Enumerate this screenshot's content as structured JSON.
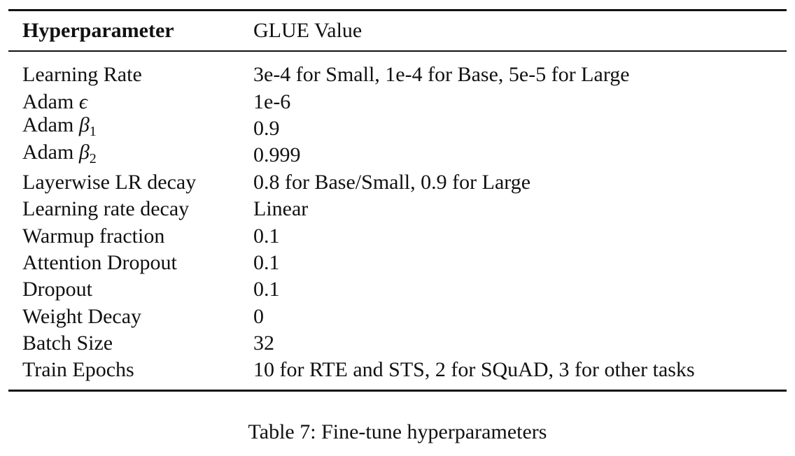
{
  "table": {
    "headers": [
      "Hyperparameter",
      "GLUE Value"
    ],
    "rows": [
      {
        "param": "Learning Rate",
        "value": "3e-4 for Small, 1e-4 for Base, 5e-5 for Large"
      },
      {
        "param_prefix": "Adam ",
        "param_symbol": "ϵ",
        "param_sub": "",
        "value": "1e-6"
      },
      {
        "param_prefix": "Adam ",
        "param_symbol": "β",
        "param_sub": "1",
        "value": "0.9"
      },
      {
        "param_prefix": "Adam ",
        "param_symbol": "β",
        "param_sub": "2",
        "value": "0.999"
      },
      {
        "param": "Layerwise LR decay",
        "value": "0.8 for Base/Small, 0.9 for Large"
      },
      {
        "param": "Learning rate decay",
        "value": "Linear"
      },
      {
        "param": "Warmup fraction",
        "value": "0.1"
      },
      {
        "param": "Attention Dropout",
        "value": "0.1"
      },
      {
        "param": "Dropout",
        "value": "0.1"
      },
      {
        "param": "Weight Decay",
        "value": "0"
      },
      {
        "param": "Batch Size",
        "value": "32"
      },
      {
        "param": "Train Epochs",
        "value": "10 for RTE and STS, 2 for SQuAD, 3 for other tasks"
      }
    ]
  },
  "caption": "Table 7: Fine-tune hyperparameters"
}
